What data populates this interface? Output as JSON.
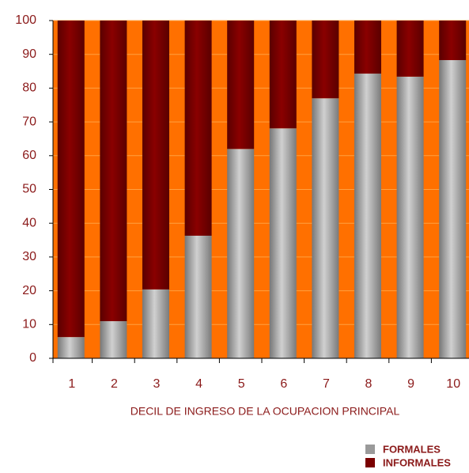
{
  "chart_data": {
    "type": "stacked_bar",
    "x_label": "DECIL DE INGRESO DE LA OCUPACION PRINCIPAL",
    "categories": [
      "1",
      "2",
      "3",
      "4",
      "5",
      "6",
      "7",
      "8",
      "9",
      "10"
    ],
    "series": [
      {
        "name": "FORMALES",
        "color": "#9a9a9a",
        "values": [
          6.3,
          11,
          20.4,
          36.3,
          62,
          68.1,
          77,
          84.3,
          83.4,
          88.3
        ]
      },
      {
        "name": "INFORMALES",
        "color": "#7a0000",
        "values": [
          93.7,
          89,
          79.6,
          63.7,
          38,
          31.9,
          23,
          15.7,
          16.6,
          11.7
        ]
      }
    ],
    "ylim": [
      0,
      100
    ],
    "yticks": [
      0,
      10,
      20,
      30,
      40,
      50,
      60,
      70,
      80,
      90,
      100
    ],
    "grid": true,
    "background": "#ff7000"
  }
}
